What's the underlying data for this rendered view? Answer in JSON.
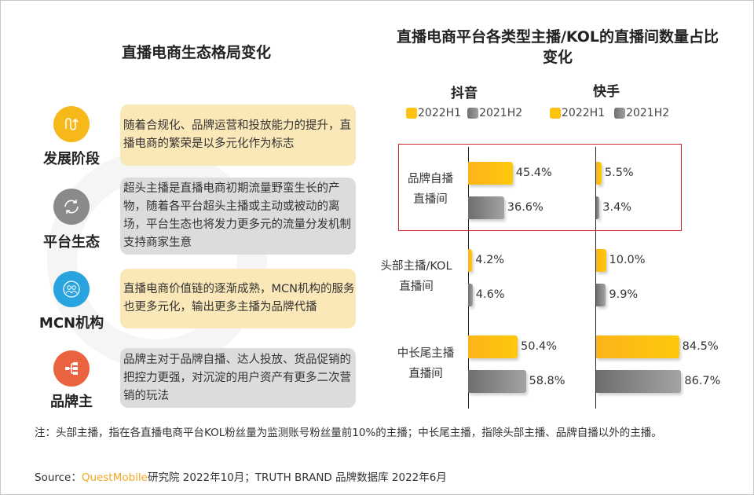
{
  "left_panel": {
    "title": "直播电商生态格局变化",
    "items": [
      {
        "label": "发展阶段",
        "icon": "wave-arrow-icon",
        "color": "#f7b81a",
        "box_color": "#fbe8b8",
        "text": "随着合规化、品牌运营和投放能力的提升，直播电商的繁荣是以多元化作为标志"
      },
      {
        "label": "平台生态",
        "icon": "refresh-cycle-icon",
        "color": "#8a8a8a",
        "box_color": "#dcdcdc",
        "text": "超头主播是直播电商初期流量野蛮生长的产物，随着各平台超头主播或主动或被动的离场，平台生态也将发力更多元的流量分发机制支持商家生意"
      },
      {
        "label": "MCN机构",
        "icon": "people-group-icon",
        "color": "#2aa4de",
        "box_color": "#fbe8b8",
        "text": "直播电商价值链的逐渐成熟，MCN机构的服务也更多元化，输出更多主播为品牌代播"
      },
      {
        "label": "品牌主",
        "icon": "hierarchy-icon",
        "color": "#e9633f",
        "box_color": "#dcdcdc",
        "text": "品牌主对于品牌自播、达人投放、货品促销的把控力更强，对沉淀的用户资产有更多二次营销的玩法"
      }
    ]
  },
  "chart_data": {
    "type": "bar",
    "orientation": "horizontal",
    "title": "直播电商平台各类型主播/KOL的直播间数量占比变化",
    "categories": [
      "品牌自播直播间",
      "头部主播/KOL直播间",
      "中长尾主播直播间"
    ],
    "category_lines": [
      [
        "品牌自播",
        "直播间"
      ],
      [
        "头部主播/KOL",
        "直播间"
      ],
      [
        "中长尾主播",
        "直播间"
      ]
    ],
    "unit": "%",
    "colors": {
      "2022H1": "#fdc20f",
      "2021H2": "#8c8c8c"
    },
    "highlight_category": "品牌自播直播间",
    "highlight_color": "#d0282e",
    "panels": [
      {
        "platform": "抖音",
        "series": [
          {
            "name": "2022H1",
            "values": [
              45.4,
              4.2,
              50.4
            ],
            "labels": [
              "45.4%",
              "4.2%",
              "50.4%"
            ]
          },
          {
            "name": "2021H2",
            "values": [
              36.6,
              4.6,
              58.8
            ],
            "labels": [
              "36.6%",
              "4.6%",
              "58.8%"
            ]
          }
        ]
      },
      {
        "platform": "快手",
        "series": [
          {
            "name": "2022H1",
            "values": [
              5.5,
              10.0,
              84.5
            ],
            "labels": [
              "5.5%",
              "10.0%",
              "84.5%"
            ]
          },
          {
            "name": "2021H2",
            "values": [
              3.4,
              9.9,
              86.7
            ],
            "labels": [
              "3.4%",
              "9.9%",
              "86.7%"
            ]
          }
        ]
      }
    ]
  },
  "footer": {
    "note": "注：头部主播，指在各直播电商平台KOL粉丝量为监测账号粉丝量前10%的主播；中长尾主播，指除头部主播、品牌自播以外的主播。",
    "source_prefix": "Source：",
    "source_brand": "QuestMobile",
    "source_rest": "研究院 2022年10月；TRUTH BRAND 品牌数据库 2022年6月"
  }
}
